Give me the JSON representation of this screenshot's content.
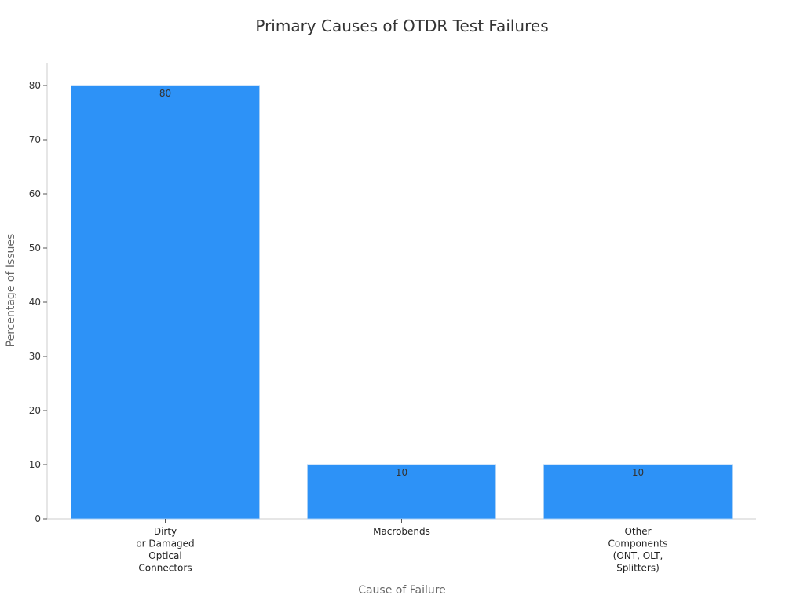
{
  "chart_data": {
    "type": "bar",
    "title": "Primary Causes of OTDR Test Failures",
    "xlabel": "Cause of Failure",
    "ylabel": "Percentage of Issues",
    "categories": [
      [
        "Dirty",
        "or Damaged",
        "Optical",
        "Connectors"
      ],
      [
        "Macrobends"
      ],
      [
        "Other",
        "Components",
        "(ONT, OLT,",
        "Splitters)"
      ]
    ],
    "values": [
      80,
      10,
      10
    ],
    "ylim": [
      0,
      80
    ],
    "yticks": [
      0,
      10,
      20,
      30,
      40,
      50,
      60,
      70,
      80
    ],
    "grid": false,
    "data_labels": true,
    "colors": {
      "bar": "#2d92f7",
      "bar_edge": "#a8cff5",
      "axis": "#cccccc",
      "text": "#333333",
      "label": "#666666"
    }
  }
}
